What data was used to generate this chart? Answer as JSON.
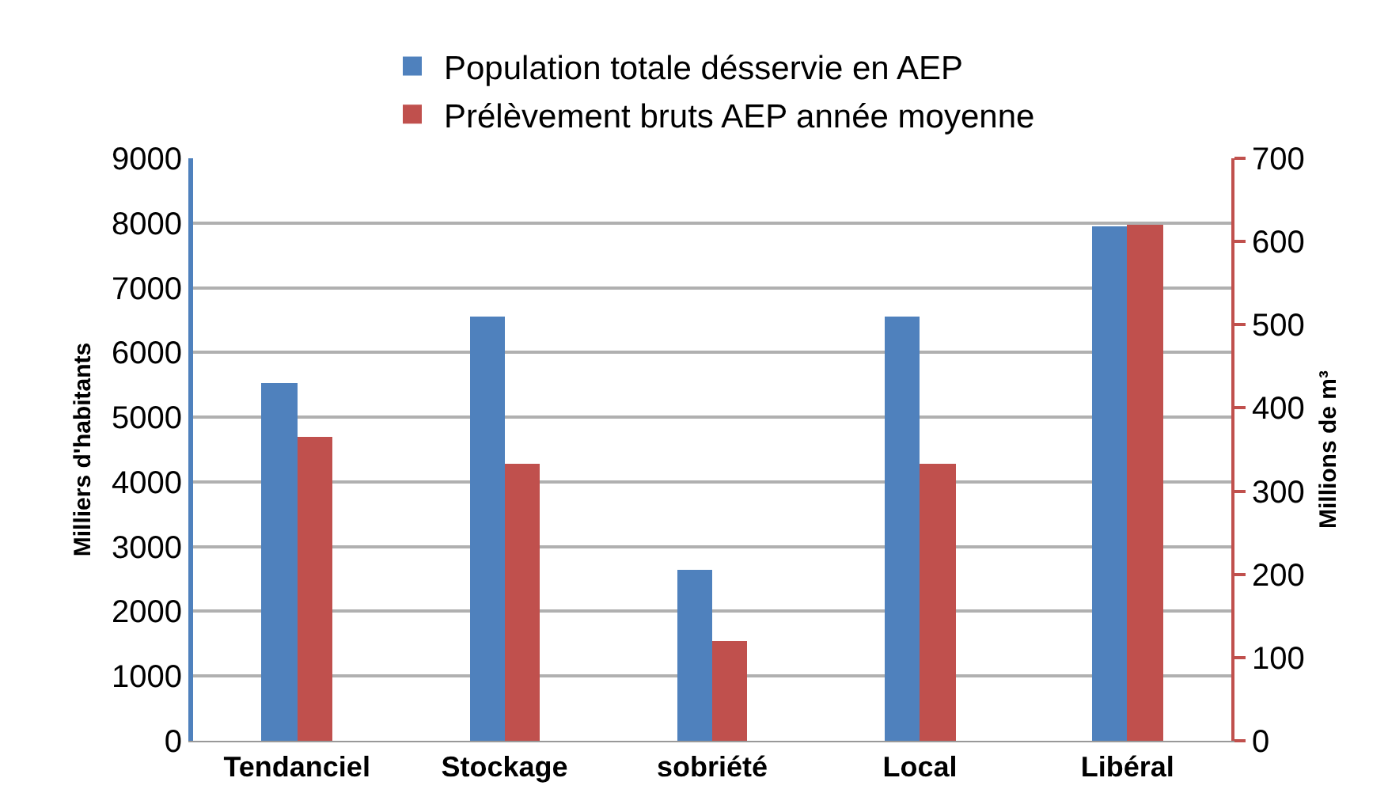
{
  "chart_data": {
    "type": "bar",
    "categories": [
      "Tendanciel",
      "Stockage",
      "sobriété",
      "Local",
      "Libéral"
    ],
    "ylabel": "Milliers d'habitants",
    "y2label": "Millions de m³",
    "series": [
      {
        "name": "Population totale désservie en AEP",
        "color": "#4f81bd",
        "values": [
          5530,
          6550,
          2650,
          6550,
          7950
        ]
      },
      {
        "name": "Prélèvement bruts AEP année moyenne",
        "color": "#c0504d",
        "axis": "y2",
        "values": [
          365,
          333,
          120,
          333,
          620
        ]
      }
    ],
    "ylim": [
      0,
      9000
    ],
    "yticks": [
      0,
      1000,
      2000,
      3000,
      4000,
      5000,
      6000,
      7000,
      8000,
      9000
    ],
    "y2lim": [
      0,
      700
    ],
    "y2ticks": [
      0,
      100,
      200,
      300,
      400,
      500,
      600,
      700
    ],
    "grid": "y",
    "legend": "top"
  }
}
